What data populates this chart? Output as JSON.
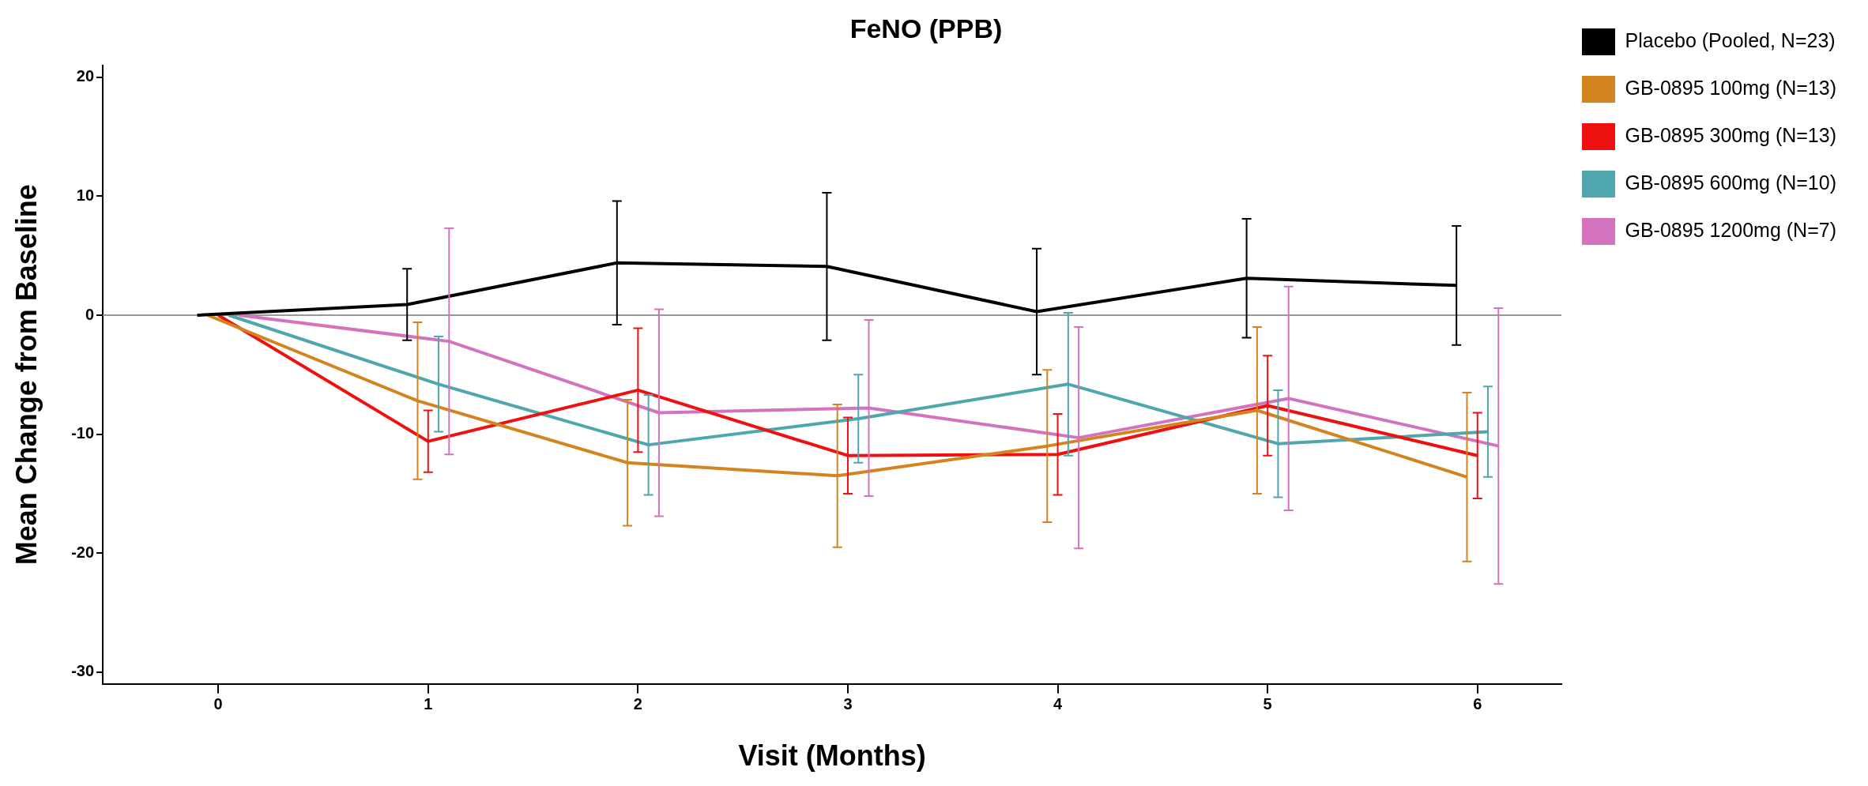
{
  "chart_data": {
    "type": "line",
    "title": "FeNO (PPB)",
    "xlabel": "Visit (Months)",
    "ylabel": "Mean Change from Baseline",
    "xlim": [
      -0.55,
      6.4
    ],
    "xticks": [
      0,
      1,
      2,
      3,
      4,
      5,
      6
    ],
    "ylim": [
      -31,
      21
    ],
    "yticks": [
      -30,
      -20,
      -10,
      0,
      10,
      20
    ],
    "grid": false,
    "legend": "top right",
    "marker": "none",
    "line_style": "solid",
    "ref_lines": [
      {
        "axis": "y",
        "value": 0,
        "color": "#999999"
      }
    ],
    "series": [
      {
        "name": "Placebo (Pooled, N=23)",
        "color": "#000000",
        "x": [
          -0.1,
          0.9,
          1.9,
          2.9,
          3.9,
          4.9,
          5.9
        ],
        "values": [
          0,
          0.9,
          4.4,
          4.1,
          0.3,
          3.1,
          2.5
        ],
        "errors": [
          null,
          3.0,
          5.2,
          6.2,
          5.3,
          5.0,
          5.0
        ]
      },
      {
        "name": "GB-0895 100mg (N=13)",
        "color": "#d4841f",
        "x": [
          -0.05,
          0.95,
          1.95,
          2.95,
          3.95,
          4.95,
          5.95
        ],
        "values": [
          0,
          -7.2,
          -12.4,
          -13.5,
          -11.0,
          -8.0,
          -13.6
        ],
        "errors": [
          null,
          6.6,
          5.3,
          6.0,
          6.4,
          7.0,
          7.1
        ]
      },
      {
        "name": "GB-0895 300mg (N=13)",
        "color": "#ee1111",
        "x": [
          0,
          1,
          2,
          3,
          4,
          5,
          6
        ],
        "values": [
          0,
          -10.6,
          -6.3,
          -11.8,
          -11.7,
          -7.6,
          -11.8
        ],
        "errors": [
          null,
          2.6,
          5.2,
          3.2,
          3.4,
          4.2,
          3.6
        ]
      },
      {
        "name": "GB-0895 600mg (N=10)",
        "color": "#4fa6ad",
        "x": [
          0.05,
          1.05,
          2.05,
          3.05,
          4.05,
          5.05,
          6.05
        ],
        "values": [
          0,
          -5.8,
          -10.9,
          -8.7,
          -5.8,
          -10.8,
          -9.8
        ],
        "errors": [
          null,
          4.0,
          4.2,
          3.7,
          6.0,
          4.5,
          3.8
        ]
      },
      {
        "name": "GB-0895 1200mg (N=7)",
        "color": "#d473bd",
        "x": [
          0.1,
          1.1,
          2.1,
          3.1,
          4.1,
          5.1,
          6.1
        ],
        "values": [
          0,
          -2.2,
          -8.2,
          -7.8,
          -10.3,
          -7.0,
          -11.0
        ],
        "errors": [
          null,
          9.5,
          8.7,
          7.4,
          9.3,
          9.4,
          11.6
        ]
      }
    ]
  }
}
